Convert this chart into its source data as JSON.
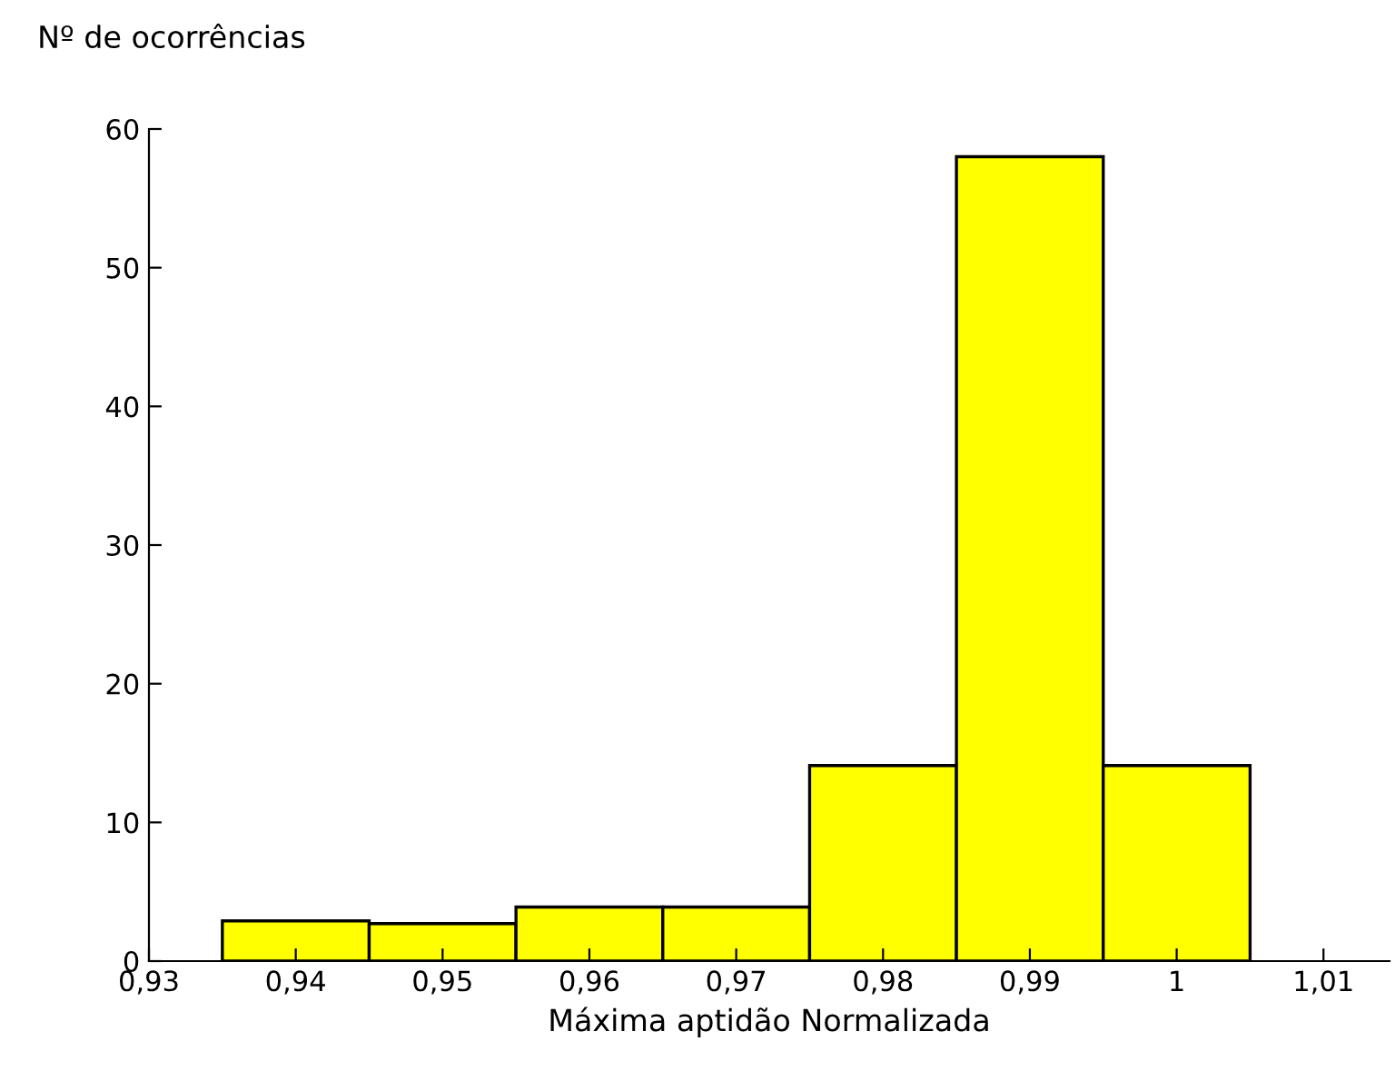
{
  "chart_data": {
    "type": "histogram",
    "ylabel": "Nº de ocorrências",
    "xlabel": "Máxima aptidão Normalizada",
    "bins": [
      0.935,
      0.945,
      0.955,
      0.965,
      0.975,
      0.985,
      0.995,
      1.005
    ],
    "values": [
      2.9,
      2.7,
      3.9,
      3.9,
      14.1,
      58,
      14.1
    ],
    "color": "#ffff00",
    "xlim": [
      0.93,
      1.0145
    ],
    "xticks": [
      {
        "value": 0.93,
        "label": "0,93"
      },
      {
        "value": 0.94,
        "label": "0,94"
      },
      {
        "value": 0.95,
        "label": "0,95"
      },
      {
        "value": 0.96,
        "label": "0,96"
      },
      {
        "value": 0.97,
        "label": "0,97"
      },
      {
        "value": 0.98,
        "label": "0,98"
      },
      {
        "value": 0.99,
        "label": "0,99"
      },
      {
        "value": 1,
        "label": "1"
      },
      {
        "value": 1.01,
        "label": "1,01"
      }
    ],
    "ylim": [
      0,
      60
    ],
    "yticks": [
      0,
      10,
      20,
      30,
      40,
      50,
      60
    ],
    "grid": false
  }
}
